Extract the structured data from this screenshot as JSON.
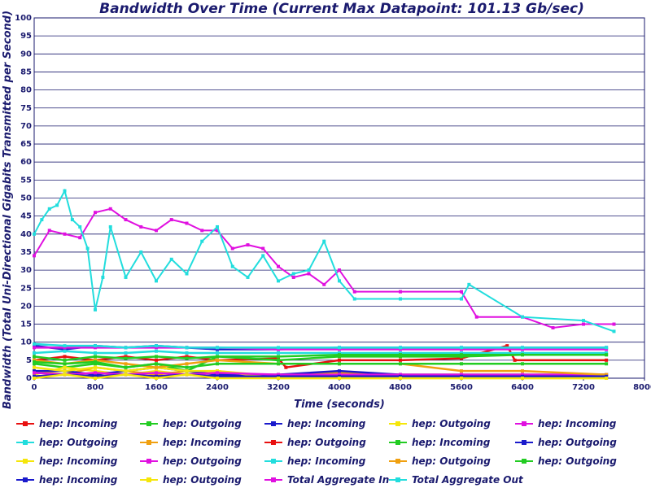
{
  "chart_data": {
    "type": "line",
    "title": "Bandwidth Over Time (Current Max Datapoint: 101.13 Gb/sec)",
    "xlabel": "Time (seconds)",
    "ylabel": "Bandwidth (Total Uni-Directional Gigabits Transmitted per Second)",
    "xlim": [
      0,
      8000
    ],
    "ylim": [
      0,
      100
    ],
    "x_ticks": [
      0,
      800,
      1600,
      2400,
      3200,
      4000,
      4800,
      5600,
      6400,
      7200,
      8000
    ],
    "y_ticks": [
      0,
      5,
      10,
      15,
      20,
      25,
      30,
      35,
      40,
      45,
      50,
      55,
      60,
      65,
      70,
      75,
      80,
      85,
      90,
      95,
      100
    ],
    "grid": "horizontal",
    "legend_position": "bottom",
    "series": [
      {
        "name": "hep: Incoming",
        "color": "#e81010",
        "x": [
          0,
          400,
          800,
          1200,
          1600,
          2000,
          2400,
          3200,
          3300,
          4000,
          4800,
          5600,
          6200,
          6300,
          7500
        ],
        "y": [
          5,
          6,
          5,
          6,
          5,
          6,
          5,
          5.5,
          3,
          5,
          5,
          5.5,
          9,
          5,
          5
        ]
      },
      {
        "name": "hep: Outgoing",
        "color": "#22cc22",
        "x": [
          0,
          400,
          800,
          1200,
          1600,
          2000,
          2400,
          3200,
          4000,
          4800,
          5600,
          6400,
          7500
        ],
        "y": [
          4,
          3,
          4,
          3,
          4,
          2,
          6,
          5,
          6,
          6,
          6,
          6.5,
          6.5
        ]
      },
      {
        "name": "hep: Incoming",
        "color": "#1a1acc",
        "x": [
          0,
          400,
          800,
          1200,
          1600,
          2000,
          2400,
          3200,
          4000,
          4800,
          5600,
          6400,
          7500
        ],
        "y": [
          9,
          8,
          9,
          8.5,
          9,
          8.5,
          8,
          8,
          8.5,
          8.5,
          8.5,
          8.5,
          8.5
        ]
      },
      {
        "name": "hep: Outgoing",
        "color": "#f5e60a",
        "x": [
          0,
          400,
          800,
          1200,
          1600,
          2000,
          2400,
          3200,
          4000,
          4800,
          5600,
          6400,
          7500
        ],
        "y": [
          1,
          3,
          2,
          1,
          2,
          1,
          2,
          0.5,
          0.5,
          0.5,
          0.5,
          0.5,
          0.5
        ]
      },
      {
        "name": "hep: Incoming",
        "color": "#e010e0",
        "x": [
          0,
          400,
          800,
          1200,
          1600,
          2000,
          2400,
          3200,
          4000,
          4800,
          5600,
          6400,
          7500
        ],
        "y": [
          8.5,
          8.5,
          8.5,
          8.5,
          8.5,
          8.5,
          8.5,
          8,
          8,
          8,
          8,
          8,
          8
        ]
      },
      {
        "name": "hep: Outgoing",
        "color": "#22dddd",
        "x": [
          0,
          400,
          800,
          1200,
          1600,
          2000,
          2400,
          3200,
          4000,
          4800,
          5600,
          6400,
          7500
        ],
        "y": [
          7,
          7.5,
          7,
          7,
          7.5,
          7,
          7,
          7,
          7,
          7,
          7,
          7,
          7
        ]
      },
      {
        "name": "hep: Incoming",
        "color": "#f0a010",
        "x": [
          0,
          400,
          800,
          1200,
          1600,
          2000,
          2400,
          3200,
          4000,
          4800,
          5600,
          6400,
          7500
        ],
        "y": [
          2,
          1,
          3,
          2,
          1,
          2,
          1,
          1,
          1.5,
          1,
          1,
          1,
          1
        ]
      },
      {
        "name": "hep: Outgoing",
        "color": "#e81010",
        "x": [
          0,
          400,
          800,
          1200,
          1600,
          2000,
          2400,
          3200,
          4000,
          4800,
          5600,
          6400,
          7500
        ],
        "y": [
          0.5,
          1,
          0.5,
          1,
          0.5,
          1,
          0.5,
          1,
          0.5,
          0.5,
          0.5,
          0.5,
          0.5
        ]
      },
      {
        "name": "hep: Incoming",
        "color": "#22cc22",
        "x": [
          0,
          400,
          800,
          1200,
          1600,
          2000,
          2400,
          3200,
          4000,
          4800,
          5600,
          6400,
          7500
        ],
        "y": [
          6,
          5,
          6,
          5.5,
          6,
          5.5,
          6,
          6,
          6.5,
          6.5,
          6.5,
          6.5,
          6.5
        ]
      },
      {
        "name": "hep: Outgoing",
        "color": "#1a1acc",
        "x": [
          0,
          400,
          800,
          1200,
          1600,
          2000,
          2400,
          3200,
          4000,
          4800,
          5600,
          6400,
          7500
        ],
        "y": [
          2,
          2,
          1,
          2,
          3,
          2,
          1,
          1,
          2,
          1,
          1,
          1,
          1
        ]
      },
      {
        "name": "hep: Incoming",
        "color": "#f5e60a",
        "x": [
          0,
          400,
          800,
          1200,
          1600,
          2000,
          2400,
          3200,
          4000,
          4800,
          5600,
          6400,
          7500
        ],
        "y": [
          3,
          2,
          3,
          2,
          3,
          2,
          2,
          0,
          0,
          0,
          0,
          0,
          0
        ]
      },
      {
        "name": "hep: Outgoing",
        "color": "#e010e0",
        "x": [
          0,
          400,
          800,
          1200,
          1600,
          2000,
          2400,
          3200,
          4000,
          4800,
          5600,
          6400,
          7500
        ],
        "y": [
          1.5,
          1,
          1.5,
          1,
          1.5,
          1,
          1.5,
          1,
          1,
          1,
          1,
          1,
          1
        ]
      },
      {
        "name": "hep: Incoming",
        "color": "#22dddd",
        "x": [
          0,
          400,
          800,
          1200,
          1600,
          2000,
          2400,
          3200,
          4000,
          4800,
          5600,
          6400,
          7500
        ],
        "y": [
          9.5,
          9,
          9,
          8.5,
          9,
          8.5,
          8.5,
          8.5,
          8.5,
          8.5,
          8.5,
          8.5,
          8.5
        ]
      },
      {
        "name": "hep: Outgoing",
        "color": "#f0a010",
        "x": [
          0,
          400,
          800,
          1200,
          1600,
          2000,
          2400,
          3200,
          4000,
          4800,
          5600,
          6400,
          7500
        ],
        "y": [
          5,
          4,
          5,
          4,
          3,
          4,
          5,
          4,
          4,
          4,
          2,
          2,
          1
        ]
      },
      {
        "name": "hep: Outgoing",
        "color": "#22cc22",
        "x": [
          0,
          400,
          800,
          1200,
          1600,
          2000,
          2400,
          3200,
          4000,
          4800,
          5600,
          6400,
          7500
        ],
        "y": [
          4.5,
          4,
          4.5,
          3,
          4,
          3,
          4,
          4,
          4,
          4,
          4,
          4,
          4
        ]
      },
      {
        "name": "hep: Incoming",
        "color": "#1a1acc",
        "x": [
          0,
          400,
          800,
          1200,
          1600,
          2000,
          2400,
          3200,
          4000,
          4800,
          5600,
          6400,
          7500
        ],
        "y": [
          0.5,
          1,
          0.5,
          1,
          0.5,
          1,
          0.5,
          0.5,
          0.5,
          0.5,
          0.5,
          0.5,
          0.5
        ]
      },
      {
        "name": "hep: Outgoing",
        "color": "#f5e60a",
        "x": [
          0,
          400,
          800,
          1200,
          1600,
          2000,
          2400,
          3200,
          4000,
          4800,
          5600,
          6400,
          7500
        ],
        "y": [
          0,
          1,
          0,
          1,
          0,
          1,
          0,
          0,
          0,
          0,
          0,
          0,
          0
        ]
      },
      {
        "name": "Total Aggregate In",
        "color": "#e010e0",
        "x": [
          0,
          200,
          400,
          600,
          800,
          1000,
          1200,
          1400,
          1600,
          1800,
          2000,
          2200,
          2400,
          2600,
          2800,
          3000,
          3200,
          3400,
          3600,
          3800,
          4000,
          4200,
          4800,
          5600,
          5800,
          6400,
          6800,
          7200,
          7600
        ],
        "y": [
          34,
          41,
          40,
          39,
          46,
          47,
          44,
          42,
          41,
          44,
          43,
          41,
          41,
          36,
          37,
          36,
          31,
          28,
          29,
          26,
          30,
          24,
          24,
          24,
          17,
          17,
          14,
          15,
          15
        ]
      },
      {
        "name": "Total Aggregate Out",
        "color": "#22dddd",
        "x": [
          0,
          100,
          200,
          300,
          400,
          500,
          600,
          700,
          800,
          900,
          1000,
          1200,
          1400,
          1600,
          1800,
          2000,
          2200,
          2400,
          2600,
          2800,
          3000,
          3200,
          3400,
          3600,
          3800,
          4000,
          4200,
          4800,
          5600,
          5700,
          6400,
          7200,
          7600
        ],
        "y": [
          40,
          44,
          47,
          48,
          52,
          44,
          42,
          36,
          19,
          28,
          42,
          28,
          35,
          27,
          33,
          29,
          38,
          42,
          31,
          28,
          34,
          27,
          29,
          30,
          38,
          27,
          22,
          22,
          22,
          26,
          17,
          16,
          13
        ]
      }
    ]
  }
}
